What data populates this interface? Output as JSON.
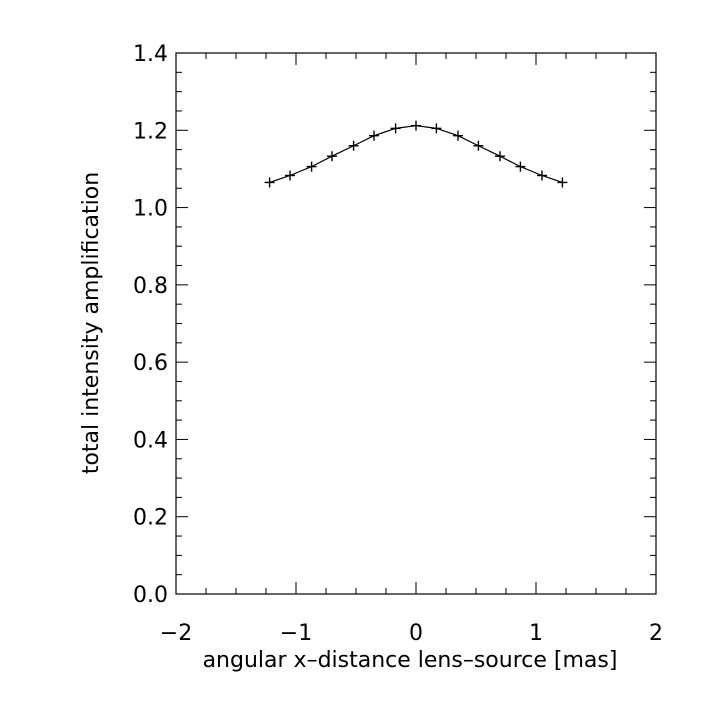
{
  "chart_data": {
    "type": "line",
    "title": "",
    "xlabel": "angular x–distance lens–source [mas]",
    "ylabel": "total intensity amplification",
    "xlim": [
      -2,
      2
    ],
    "ylim": [
      0.0,
      1.4
    ],
    "grid": false,
    "legend": "none",
    "marker": "plus",
    "xticks": [
      -2,
      -1,
      0,
      1,
      2
    ],
    "xtick_labels": [
      "−2",
      "−1",
      "0",
      "1",
      "2"
    ],
    "yticks": [
      0.0,
      0.2,
      0.4,
      0.6,
      0.8,
      1.0,
      1.2,
      1.4
    ],
    "ytick_labels": [
      "0.0",
      "0.2",
      "0.4",
      "0.6",
      "0.8",
      "1.0",
      "1.2",
      "1.4"
    ],
    "x": [
      -1.22,
      -1.05,
      -0.87,
      -0.7,
      -0.52,
      -0.35,
      -0.17,
      0.0,
      0.17,
      0.35,
      0.52,
      0.7,
      0.87,
      1.05,
      1.22
    ],
    "y": [
      1.065,
      1.083,
      1.106,
      1.133,
      1.16,
      1.186,
      1.205,
      1.212,
      1.205,
      1.186,
      1.16,
      1.133,
      1.106,
      1.083,
      1.065
    ]
  }
}
